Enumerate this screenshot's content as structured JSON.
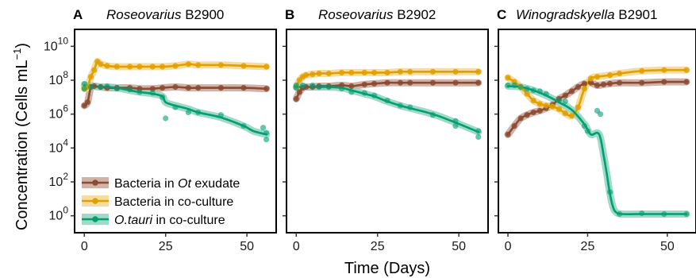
{
  "figure": {
    "ylabel": "Concentration (Cells mL",
    "ylabel_sup": "−1",
    "ylabel_end": ")",
    "xlabel": "Time (Days)"
  },
  "legend": {
    "items": [
      {
        "label": "Bacteria in ",
        "label_italic": "Ot",
        "label_tail": " exudate",
        "color": "#8B4A32",
        "fill": "#C9A597"
      },
      {
        "label": "Bacteria in co-culture",
        "label_italic": "",
        "label_tail": "",
        "color": "#E0A000",
        "fill": "#F5D690"
      },
      {
        "label": "",
        "label_italic": "O.tauri",
        "label_tail": " in co-culture",
        "color": "#009E73",
        "fill": "#8FD3BC"
      }
    ]
  },
  "colors": {
    "exudate": "#8B4A32",
    "coculture": "#E0A000",
    "otauri": "#009E73"
  },
  "chart_data": [
    {
      "type": "line",
      "panel_letter": "A",
      "title_italic": "Roseovarius",
      "title_rest": " B2900",
      "xlim": [
        -3,
        59
      ],
      "ylim": [
        -1,
        11
      ],
      "yscale": "log10",
      "xticks": [
        0,
        25,
        50
      ],
      "yticks": [
        0,
        2,
        4,
        6,
        8,
        10
      ],
      "series": [
        {
          "name": "Bacteria in Ot exudate",
          "key": "exudate",
          "points": [
            [
              0,
              6.5
            ],
            [
              1,
              6.7
            ],
            [
              2,
              7.6
            ],
            [
              3,
              7.65
            ],
            [
              5,
              7.6
            ],
            [
              7,
              7.55
            ],
            [
              10,
              7.55
            ],
            [
              14,
              7.55
            ],
            [
              17,
              7.5
            ],
            [
              21,
              7.5
            ],
            [
              24,
              7.55
            ],
            [
              28,
              7.6
            ],
            [
              32,
              7.55
            ],
            [
              35,
              7.55
            ],
            [
              42,
              7.55
            ],
            [
              49,
              7.55
            ],
            [
              56,
              7.5
            ]
          ]
        },
        {
          "name": "Bacteria in co-culture",
          "key": "coculture",
          "points": [
            [
              0,
              7.5
            ],
            [
              1,
              7.6
            ],
            [
              2,
              8.2
            ],
            [
              3,
              8.6
            ],
            [
              4,
              9.1
            ],
            [
              5,
              8.95
            ],
            [
              7,
              8.85
            ],
            [
              10,
              8.8
            ],
            [
              14,
              8.8
            ],
            [
              17,
              8.8
            ],
            [
              21,
              8.8
            ],
            [
              24,
              8.8
            ],
            [
              28,
              8.85
            ],
            [
              32,
              8.95
            ],
            [
              35,
              8.9
            ],
            [
              42,
              8.9
            ],
            [
              49,
              8.85
            ],
            [
              56,
              8.8
            ]
          ]
        },
        {
          "name": "O.tauri in co-culture",
          "key": "otauri",
          "points": [
            [
              0,
              7.7
            ],
            [
              2,
              7.65
            ],
            [
              5,
              7.6
            ],
            [
              7,
              7.6
            ],
            [
              10,
              7.55
            ],
            [
              14,
              7.4
            ],
            [
              17,
              7.3
            ],
            [
              21,
              7.2
            ],
            [
              24,
              7.05
            ],
            [
              25,
              6.7
            ],
            [
              28,
              6.5
            ],
            [
              32,
              6.3
            ],
            [
              35,
              6.1
            ],
            [
              42,
              5.8
            ],
            [
              49,
              5.3
            ],
            [
              52,
              5.0
            ],
            [
              56,
              4.8
            ]
          ]
        },
        {
          "name": "O.tauri scatter",
          "key": "otauri_pts",
          "points": [
            [
              0,
              7.8
            ],
            [
              0,
              7.5
            ],
            [
              2,
              7.6
            ],
            [
              5,
              7.6
            ],
            [
              7,
              7.65
            ],
            [
              10,
              7.5
            ],
            [
              14,
              7.45
            ],
            [
              17,
              7.3
            ],
            [
              21,
              7.25
            ],
            [
              24,
              7.0
            ],
            [
              25,
              5.75
            ],
            [
              28,
              6.4
            ],
            [
              32,
              6.1
            ],
            [
              35,
              6.1
            ],
            [
              42,
              5.95
            ],
            [
              49,
              5.3
            ],
            [
              55,
              5.2
            ],
            [
              56,
              4.9
            ],
            [
              56,
              4.5
            ]
          ]
        }
      ]
    },
    {
      "type": "line",
      "panel_letter": "B",
      "title_italic": "Roseovarius",
      "title_rest": " B2902",
      "xlim": [
        -3,
        59
      ],
      "ylim": [
        -1,
        11
      ],
      "yscale": "log10",
      "xticks": [
        0,
        25,
        50
      ],
      "yticks": [
        0,
        2,
        4,
        6,
        8,
        10
      ],
      "series": [
        {
          "name": "Bacteria in Ot exudate",
          "key": "exudate",
          "points": [
            [
              0,
              6.9
            ],
            [
              1,
              7.3
            ],
            [
              2,
              7.55
            ],
            [
              3,
              7.6
            ],
            [
              5,
              7.6
            ],
            [
              7,
              7.65
            ],
            [
              10,
              7.65
            ],
            [
              14,
              7.7
            ],
            [
              17,
              7.65
            ],
            [
              21,
              7.75
            ],
            [
              24,
              7.8
            ],
            [
              28,
              7.85
            ],
            [
              32,
              7.85
            ],
            [
              35,
              7.85
            ],
            [
              42,
              7.85
            ],
            [
              49,
              7.85
            ],
            [
              56,
              7.85
            ]
          ]
        },
        {
          "name": "Bacteria in co-culture",
          "key": "coculture",
          "points": [
            [
              0,
              7.6
            ],
            [
              1,
              8.0
            ],
            [
              2,
              8.2
            ],
            [
              3,
              8.3
            ],
            [
              5,
              8.35
            ],
            [
              7,
              8.4
            ],
            [
              10,
              8.4
            ],
            [
              14,
              8.45
            ],
            [
              17,
              8.45
            ],
            [
              21,
              8.45
            ],
            [
              24,
              8.45
            ],
            [
              28,
              8.45
            ],
            [
              32,
              8.5
            ],
            [
              35,
              8.5
            ],
            [
              42,
              8.5
            ],
            [
              49,
              8.5
            ],
            [
              56,
              8.5
            ]
          ]
        },
        {
          "name": "O.tauri in co-culture",
          "key": "otauri",
          "points": [
            [
              0,
              7.6
            ],
            [
              2,
              7.6
            ],
            [
              5,
              7.6
            ],
            [
              7,
              7.6
            ],
            [
              10,
              7.6
            ],
            [
              14,
              7.55
            ],
            [
              17,
              7.4
            ],
            [
              21,
              7.2
            ],
            [
              24,
              7.05
            ],
            [
              28,
              6.75
            ],
            [
              32,
              6.5
            ],
            [
              35,
              6.35
            ],
            [
              42,
              6.0
            ],
            [
              49,
              5.5
            ],
            [
              56,
              4.95
            ]
          ]
        },
        {
          "name": "O.tauri scatter",
          "key": "otauri_pts",
          "points": [
            [
              0,
              7.7
            ],
            [
              0,
              7.55
            ],
            [
              2,
              7.7
            ],
            [
              5,
              7.7
            ],
            [
              7,
              7.6
            ],
            [
              10,
              7.6
            ],
            [
              14,
              7.5
            ],
            [
              17,
              7.3
            ],
            [
              21,
              7.25
            ],
            [
              24,
              7.1
            ],
            [
              28,
              6.8
            ],
            [
              32,
              6.5
            ],
            [
              35,
              6.4
            ],
            [
              42,
              5.95
            ],
            [
              49,
              5.6
            ],
            [
              49,
              5.3
            ],
            [
              56,
              5.0
            ],
            [
              56,
              4.65
            ]
          ]
        }
      ]
    },
    {
      "type": "line",
      "panel_letter": "C",
      "title_italic": "Winogradskyella",
      "title_rest": " B2901",
      "xlim": [
        -3,
        59
      ],
      "ylim": [
        -1,
        11
      ],
      "yscale": "log10",
      "xticks": [
        0,
        25,
        50
      ],
      "yticks": [
        0,
        2,
        4,
        6,
        8,
        10
      ],
      "series": [
        {
          "name": "Bacteria in Ot exudate",
          "key": "exudate",
          "points": [
            [
              0,
              4.8
            ],
            [
              2,
              5.3
            ],
            [
              4,
              5.75
            ],
            [
              6,
              5.95
            ],
            [
              8,
              6.1
            ],
            [
              10,
              6.2
            ],
            [
              12,
              6.35
            ],
            [
              14,
              6.55
            ],
            [
              16,
              6.9
            ],
            [
              18,
              7.1
            ],
            [
              20,
              7.35
            ],
            [
              22,
              7.6
            ],
            [
              24,
              7.8
            ],
            [
              26,
              7.85
            ],
            [
              28,
              7.7
            ],
            [
              30,
              7.75
            ],
            [
              32,
              7.8
            ],
            [
              35,
              7.85
            ],
            [
              42,
              7.85
            ],
            [
              49,
              7.9
            ],
            [
              56,
              7.9
            ]
          ]
        },
        {
          "name": "Bacteria in co-culture",
          "key": "coculture",
          "points": [
            [
              0,
              8.15
            ],
            [
              2,
              7.9
            ],
            [
              4,
              7.6
            ],
            [
              6,
              7.2
            ],
            [
              8,
              6.8
            ],
            [
              10,
              6.6
            ],
            [
              12,
              6.5
            ],
            [
              14,
              6.45
            ],
            [
              16,
              6.3
            ],
            [
              18,
              6.05
            ],
            [
              20,
              5.9
            ],
            [
              22,
              6.4
            ],
            [
              24,
              7.5
            ],
            [
              26,
              8.1
            ],
            [
              28,
              8.2
            ],
            [
              32,
              8.3
            ],
            [
              35,
              8.4
            ],
            [
              42,
              8.55
            ],
            [
              49,
              8.6
            ],
            [
              56,
              8.6
            ]
          ]
        },
        {
          "name": "O.tauri in co-culture",
          "key": "otauri",
          "points": [
            [
              0,
              7.65
            ],
            [
              4,
              7.6
            ],
            [
              8,
              7.4
            ],
            [
              12,
              7.1
            ],
            [
              16,
              6.7
            ],
            [
              20,
              6.25
            ],
            [
              24,
              5.4
            ],
            [
              26,
              4.8
            ],
            [
              28,
              4.9
            ],
            [
              29,
              4.6
            ],
            [
              30,
              3.6
            ],
            [
              31,
              2.5
            ],
            [
              32,
              1.3
            ],
            [
              33,
              0.5
            ],
            [
              34,
              0.2
            ],
            [
              36,
              0.1
            ],
            [
              42,
              0.1
            ],
            [
              49,
              0.1
            ],
            [
              56,
              0.1
            ]
          ]
        },
        {
          "name": "O.tauri scatter",
          "key": "otauri_pts",
          "points": [
            [
              0,
              7.7
            ],
            [
              2,
              7.7
            ],
            [
              4,
              7.6
            ],
            [
              6,
              7.5
            ],
            [
              8,
              7.4
            ],
            [
              10,
              7.35
            ],
            [
              12,
              7.2
            ],
            [
              16,
              6.8
            ],
            [
              18,
              6.75
            ],
            [
              24,
              5.3
            ],
            [
              25,
              5.0
            ],
            [
              28,
              6.2
            ],
            [
              29,
              6.0
            ],
            [
              32,
              1.4
            ],
            [
              35,
              0.1
            ],
            [
              42,
              0.15
            ],
            [
              49,
              0.1
            ],
            [
              56,
              0.1
            ]
          ]
        }
      ]
    }
  ]
}
